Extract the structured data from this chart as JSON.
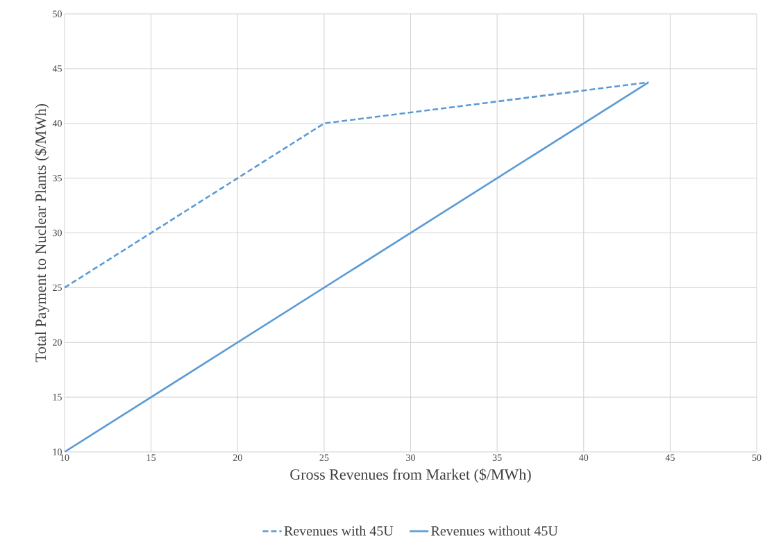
{
  "chart_data": {
    "type": "line",
    "xlabel": "Gross Revenues from Market ($/MWh)",
    "ylabel": "Total Payment to Nuclear Plants ($/MWh)",
    "series": [
      {
        "name": "Revenues with 45U",
        "color": "#5b9bd5",
        "line_style": "dashed",
        "x": [
          10,
          25,
          43.75
        ],
        "values": [
          25,
          40,
          43.75
        ]
      },
      {
        "name": "Revenues without 45U",
        "color": "#5b9bd5",
        "line_style": "solid",
        "x": [
          10,
          43.75
        ],
        "values": [
          10,
          43.75
        ]
      }
    ],
    "xlim": [
      10,
      50
    ],
    "ylim": [
      10,
      50
    ],
    "xticks": [
      10,
      15,
      20,
      25,
      30,
      35,
      40,
      45,
      50
    ],
    "yticks": [
      10,
      15,
      20,
      25,
      30,
      35,
      40,
      45,
      50
    ],
    "grid": true,
    "legend": "bottom"
  }
}
